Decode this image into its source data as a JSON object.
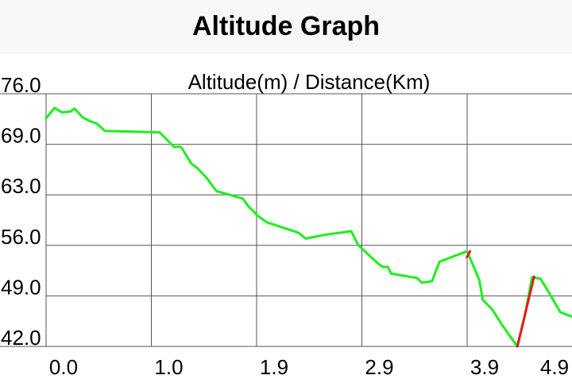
{
  "app": {
    "title": "Altitude Graph"
  },
  "chart_data": {
    "type": "line",
    "title": "Altitude(m) / Distance(Km)",
    "xlabel": "",
    "ylabel": "",
    "x_tick_labels": [
      "0.0",
      "1.0",
      "1.9",
      "2.9",
      "3.9",
      "4.9"
    ],
    "y_tick_labels": [
      "76.0",
      "69.0",
      "63.0",
      "56.0",
      "49.0",
      "42.0"
    ],
    "xlim": [
      -0.1,
      4.9
    ],
    "ylim": [
      42.0,
      76.0
    ],
    "grid": true,
    "colors": {
      "line": "#1cf01c",
      "steep_segment": "#e61a1a",
      "grid": "#555555",
      "background": "#ffffff"
    },
    "series": [
      {
        "x": [
          -0.1,
          -0.02,
          0.05,
          0.13,
          0.17,
          0.25,
          0.32,
          0.38,
          0.46,
          0.98,
          1.05,
          1.12,
          1.17,
          1.19,
          1.28,
          1.33,
          1.42,
          1.52,
          1.77,
          1.82,
          1.92,
          2.0,
          2.3,
          2.37,
          2.54,
          2.8,
          2.87,
          3.06,
          3.1,
          3.15,
          3.18,
          3.43,
          3.47,
          3.54,
          3.57,
          3.64,
          3.9,
          3.93,
          4.02,
          4.05,
          4.05,
          4.14,
          4.23,
          4.38,
          4.45,
          4.52,
          4.6,
          4.64,
          4.67,
          4.79,
          4.9
        ],
        "y": [
          72.7,
          74.1,
          73.5,
          73.6,
          74.0,
          72.8,
          72.3,
          72.0,
          71.0,
          70.8,
          69.8,
          68.8,
          68.9,
          68.7,
          66.6,
          66.1,
          64.8,
          62.9,
          61.9,
          60.9,
          59.5,
          58.7,
          57.3,
          56.5,
          57.0,
          57.5,
          55.6,
          53.1,
          52.7,
          52.7,
          51.8,
          51.2,
          50.6,
          50.7,
          50.8,
          53.4,
          54.8,
          53.9,
          50.9,
          48.3,
          48.3,
          47.0,
          45.0,
          42.0,
          46.0,
          51.3,
          51.1,
          50.2,
          49.5,
          46.6,
          46.0
        ]
      }
    ],
    "steep_segments": [
      {
        "x": [
          3.9,
          3.93
        ],
        "y": [
          54.0,
          54.8
        ]
      },
      {
        "x": [
          4.38,
          4.54
        ],
        "y": [
          42.0,
          51.4
        ]
      }
    ]
  }
}
